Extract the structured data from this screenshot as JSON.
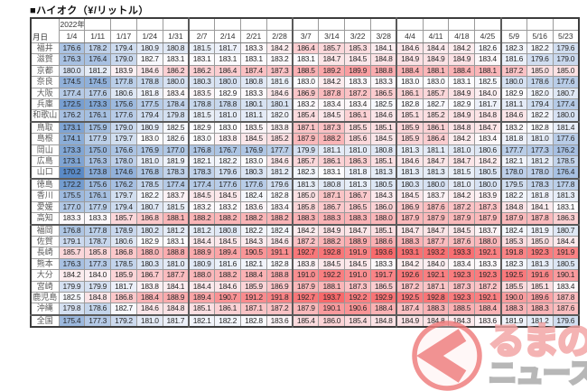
{
  "title": "■ハイオク（¥/リットル）",
  "header": {
    "year_label": "2022年",
    "corner_label": "月日"
  },
  "chart_data": {
    "type": "heatmap",
    "title": "ハイオク（¥/リットル）",
    "unit": "¥/リットル",
    "x_label": "月日",
    "columns": [
      "1/4",
      "1/11",
      "1/17",
      "1/24",
      "1/31",
      "2/7",
      "2/14",
      "2/21",
      "2/28",
      "3/7",
      "3/14",
      "3/22",
      "3/28",
      "4/4",
      "4/11",
      "4/18",
      "4/25",
      "5/9",
      "5/16",
      "5/23"
    ],
    "rows": [
      {
        "name": "福井",
        "values": [
          176.6,
          178.2,
          179.4,
          180.9,
          180.8,
          181.5,
          181.7,
          183.3,
          184.2,
          186.4,
          185.7,
          185.3,
          184.1,
          184.6,
          184.4,
          184.2,
          182.6,
          182.3,
          182.2,
          179.6
        ]
      },
      {
        "name": "滋賀",
        "values": [
          176.3,
          176.4,
          179.0,
          182.7,
          183.1,
          183.1,
          183.1,
          183.1,
          183.2,
          183.1,
          184.7,
          184.5,
          184.8,
          184.9,
          184.9,
          184.9,
          183.4,
          181.6,
          179.6,
          179.0
        ]
      },
      {
        "name": "京都",
        "values": [
          180.0,
          181.2,
          183.9,
          184.6,
          186.2,
          186.2,
          186.4,
          187.4,
          187.3,
          188.5,
          189.2,
          189.9,
          188.8,
          188.4,
          188.1,
          188.4,
          188.1,
          187.2,
          185.0,
          185.0
        ]
      },
      {
        "name": "奈良",
        "values": [
          174.5,
          174.5,
          177.8,
          178.8,
          180.0,
          180.3,
          180.0,
          180.8,
          181.6,
          183.0,
          184.2,
          183.3,
          183.3,
          183.0,
          183.0,
          183.1,
          182.5,
          180.0,
          178.6,
          177.6
        ]
      },
      {
        "name": "大阪",
        "values": [
          177.4,
          177.6,
          180.6,
          181.8,
          183.4,
          183.5,
          182.9,
          183.3,
          184.6,
          186.9,
          187.8,
          187.2,
          186.5,
          186.1,
          185.7,
          184.9,
          184.0,
          182.9,
          182.0,
          180.7
        ]
      },
      {
        "name": "兵庫",
        "values": [
          172.5,
          173.3,
          175.6,
          177.5,
          178.4,
          178.8,
          178.8,
          180.1,
          180.1,
          183.2,
          183.4,
          183.4,
          182.5,
          182.8,
          182.7,
          182.9,
          181.7,
          181.1,
          179.4,
          177.4
        ]
      },
      {
        "name": "和歌山",
        "values": [
          176.2,
          176.1,
          177.6,
          179.4,
          179.8,
          181.5,
          181.0,
          181.1,
          182.0,
          185.4,
          184.5,
          186.1,
          184.6,
          185.1,
          185.2,
          184.9,
          184.8,
          184.6,
          182.2,
          180.0
        ]
      },
      {
        "name": "鳥取",
        "values": [
          173.1,
          175.9,
          179.0,
          180.9,
          182.5,
          182.9,
          183.0,
          183.5,
          183.8,
          187.1,
          187.3,
          185.5,
          185.1,
          185.9,
          186.1,
          184.8,
          184.7,
          183.2,
          182.8,
          181.4
        ]
      },
      {
        "name": "島根",
        "values": [
          174.1,
          177.9,
          179.7,
          183.0,
          182.6,
          183.0,
          183.8,
          184.5,
          185.2,
          187.9,
          188.2,
          185.6,
          184.5,
          185.9,
          186.4,
          184.2,
          183.4,
          181.8,
          181.0,
          177.6
        ]
      },
      {
        "name": "岡山",
        "values": [
          173.3,
          175.0,
          176.6,
          176.9,
          177.0,
          176.8,
          176.7,
          176.9,
          177.7,
          179.9,
          181.1,
          181.0,
          180.8,
          181.3,
          181.1,
          181.0,
          180.6,
          177.7,
          177.3,
          176.2
        ]
      },
      {
        "name": "広島",
        "values": [
          173.1,
          176.3,
          178.0,
          181.0,
          181.9,
          182.1,
          182.2,
          183.0,
          184.6,
          185.7,
          186.1,
          186.3,
          185.1,
          184.6,
          184.7,
          184.7,
          184.2,
          182.1,
          181.2,
          178.5
        ]
      },
      {
        "name": "山口",
        "values": [
          170.2,
          173.8,
          174.6,
          176.8,
          178.3,
          178.3,
          179.6,
          180.3,
          181.2,
          182.3,
          183.1,
          181.8,
          181.3,
          181.3,
          181.3,
          181.5,
          180.5,
          178.0,
          178.0,
          176.4
        ]
      },
      {
        "name": "徳島",
        "values": [
          172.2,
          175.6,
          176.2,
          178.5,
          177.4,
          177.4,
          177.6,
          177.6,
          179.6,
          181.3,
          180.8,
          181.3,
          180.5,
          180.3,
          180.0,
          181.0,
          180.0,
          179.5,
          178.3,
          177.8
        ]
      },
      {
        "name": "香川",
        "values": [
          175.5,
          176.1,
          179.7,
          182.2,
          183.7,
          184.5,
          184.5,
          182.4,
          182.8,
          185.0,
          187.1,
          186.7,
          184.3,
          184.5,
          183.7,
          184.2,
          183.9,
          182.2,
          181.8,
          181.3
        ]
      },
      {
        "name": "愛媛",
        "values": [
          177.0,
          177.9,
          179.4,
          180.7,
          181.5,
          183.2,
          183.2,
          183.6,
          183.4,
          185.8,
          186.7,
          186.5,
          186.0,
          186.9,
          187.6,
          187.2,
          187.3,
          184.8,
          184.1,
          183.1
        ]
      },
      {
        "name": "高知",
        "values": [
          183.3,
          183.3,
          185.7,
          186.8,
          188.1,
          188.2,
          188.2,
          188.2,
          188.2,
          188.3,
          188.3,
          188.3,
          188.0,
          187.9,
          187.9,
          187.9,
          187.9,
          187.9,
          187.8,
          186.3
        ]
      },
      {
        "name": "福岡",
        "values": [
          176.8,
          177.8,
          178.9,
          180.2,
          181.2,
          181.2,
          180.8,
          182.2,
          182.4,
          184.2,
          184.9,
          184.7,
          185.1,
          184.7,
          184.7,
          184.5,
          183.7,
          182.4,
          181.9,
          180.7
        ]
      },
      {
        "name": "佐賀",
        "values": [
          179.1,
          178.7,
          180.6,
          182.9,
          183.1,
          184.4,
          184.5,
          184.3,
          184.6,
          187.2,
          188.2,
          188.9,
          188.6,
          188.3,
          187.7,
          187.6,
          188.0,
          185.3,
          185.0,
          184.4
        ]
      },
      {
        "name": "長崎",
        "values": [
          185.7,
          185.8,
          186.8,
          188.0,
          188.8,
          188.9,
          189.4,
          190.5,
          191.1,
          192.7,
          192.8,
          191.9,
          193.6,
          193.1,
          193.2,
          193.3,
          192.1,
          191.8,
          192.3,
          191.9
        ]
      },
      {
        "name": "熊本",
        "values": [
          176.3,
          177.3,
          178.5,
          180.3,
          181.0,
          180.9,
          181.6,
          182.1,
          182.8,
          183.8,
          184.5,
          184.5,
          183.3,
          184.2,
          184.0,
          183.4,
          183.3,
          182.3,
          181.3,
          180.5
        ]
      },
      {
        "name": "大分",
        "values": [
          184.2,
          184.0,
          185.9,
          186.7,
          187.7,
          188.0,
          188.2,
          188.4,
          188.8,
          191.0,
          192.2,
          191.0,
          191.7,
          192.6,
          192.1,
          192.3,
          192.3,
          192.5,
          191.6,
          190.1
        ]
      },
      {
        "name": "宮崎",
        "values": [
          179.9,
          179.9,
          181.7,
          183.8,
          184.1,
          184.4,
          184.6,
          185.9,
          186.9,
          187.9,
          188.1,
          187.3,
          186.5,
          187.2,
          187.1,
          187.3,
          187.2,
          185.5,
          185.1,
          183.4
        ]
      },
      {
        "name": "鹿児島",
        "values": [
          182.5,
          184.8,
          186.8,
          188.4,
          188.9,
          189.4,
          190.7,
          191.2,
          191.8,
          192.7,
          193.7,
          192.2,
          192.9,
          192.5,
          192.8,
          192.3,
          192.1,
          190.0,
          189.6,
          187.8
        ]
      },
      {
        "name": "沖縄",
        "values": [
          179.8,
          178.6,
          182.7,
          184.6,
          184.8,
          185.1,
          186.1,
          187.1,
          187.2,
          187.9,
          190.1,
          190.6,
          188.4,
          187.4,
          188.3,
          188.5,
          188.4,
          188.3,
          188.3,
          187.6
        ]
      },
      {
        "name": "全国",
        "values": [
          175.4,
          177.3,
          179.2,
          181.0,
          181.7,
          182.1,
          182.2,
          182.8,
          183.6,
          185.4,
          186.0,
          185.4,
          184.8,
          184.9,
          184.8,
          184.3,
          183.6,
          181.9,
          181.2,
          179.6
        ]
      }
    ],
    "color_scale": {
      "min_value": 170.2,
      "mid_value": 183.0,
      "max_value": 193.7,
      "min_color": "#5A8AC6",
      "mid_color": "#FCFCFF",
      "max_color": "#F8696B"
    },
    "column_group_starts": [
      5,
      9,
      13,
      17
    ],
    "row_group_ends": [
      6,
      11,
      15,
      23
    ],
    "legend": "off",
    "grid": "on"
  },
  "watermark": {
    "text_top": "るまの",
    "text_bottom": "ニュース",
    "accent_color": "#ef7b7b",
    "outline_pink": "#f2a3a3",
    "outline_gray": "#a8a8a8"
  }
}
